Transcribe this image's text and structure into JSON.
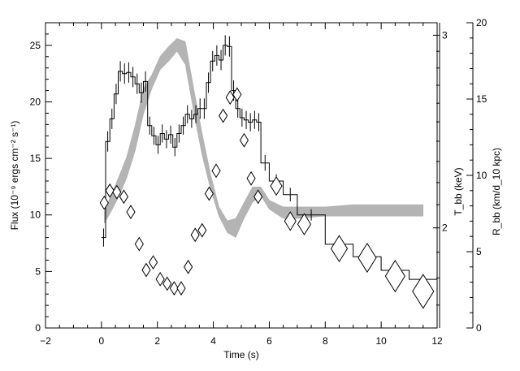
{
  "chart_data": {
    "type": "line",
    "title": "",
    "xlabel": "Time (s)",
    "ylabel_left": "Flux (10⁻⁹ ergs cm⁻² s⁻¹)",
    "ylabel_right_inner": "T_bb (keV)",
    "ylabel_right_outer": "R_bb (km/d_10 kpc)",
    "xlim": [
      -2,
      12
    ],
    "ylim": [
      0,
      27
    ],
    "x_ticks": [
      -2,
      0,
      2,
      4,
      6,
      8,
      10,
      12
    ],
    "y_ticks": [
      0,
      5,
      10,
      15,
      20,
      25
    ],
    "temperature_axis": {
      "scale": "log",
      "labeled_ticks": [
        2,
        3
      ],
      "minor_ticks": [
        1.7,
        1.8,
        1.9,
        2.1,
        2.2,
        2.3,
        2.4,
        2.5,
        2.6,
        2.7,
        2.8,
        2.9
      ],
      "range": [
        1.62,
        3.08
      ]
    },
    "radius_axis": {
      "ylim": [
        0,
        20
      ],
      "ticks": [
        0,
        5,
        10,
        15,
        20
      ]
    },
    "grid": false,
    "legend": "none",
    "series": [
      {
        "style": "histogram-with-error-bars",
        "axis": "flux",
        "edges": [
          0.0,
          0.15,
          0.3,
          0.45,
          0.6,
          0.75,
          0.9,
          1.05,
          1.2,
          1.35,
          1.5,
          1.65,
          1.8,
          1.95,
          2.1,
          2.25,
          2.4,
          2.55,
          2.7,
          2.85,
          3.0,
          3.15,
          3.3,
          3.45,
          3.6,
          3.75,
          3.9,
          4.05,
          4.2,
          4.35,
          4.5,
          4.65,
          4.8,
          4.95,
          5.1,
          5.25,
          5.4,
          5.55,
          5.7,
          6.0,
          6.5,
          7.0,
          8.0,
          9.0,
          10.0,
          11.0,
          12.0
        ],
        "values": [
          8.0,
          16.5,
          18.5,
          20.7,
          22.7,
          22.5,
          22.6,
          22.2,
          21.6,
          20.8,
          21.8,
          17.9,
          17.0,
          16.2,
          17.2,
          16.7,
          17.1,
          16.0,
          17.2,
          17.9,
          18.9,
          18.5,
          18.9,
          19.4,
          19.4,
          21.7,
          23.6,
          24.1,
          23.7,
          25.0,
          24.9,
          21.0,
          19.4,
          18.6,
          18.4,
          18.2,
          18.4,
          18.2,
          14.6,
          13.0,
          11.8,
          10.0,
          7.4,
          6.3,
          5.1,
          4.3
        ],
        "errors": [
          0.8,
          0.9,
          0.9,
          0.9,
          0.9,
          0.9,
          0.9,
          0.9,
          0.9,
          0.9,
          0.9,
          0.8,
          0.8,
          0.8,
          0.8,
          0.8,
          0.8,
          0.8,
          0.8,
          0.8,
          0.8,
          0.8,
          0.8,
          0.9,
          0.9,
          0.9,
          0.9,
          0.9,
          0.9,
          0.9,
          0.9,
          0.9,
          0.8,
          0.8,
          0.8,
          0.8,
          0.8,
          0.8,
          0.7,
          0.6,
          0.6,
          0.5,
          0.4,
          0.4,
          0.4,
          0.4
        ]
      },
      {
        "style": "shaded-band",
        "axis": "temperature",
        "x": [
          0.1,
          0.3,
          0.6,
          0.9,
          1.2,
          1.5,
          1.8,
          2.1,
          2.4,
          2.7,
          3.0,
          3.3,
          3.6,
          3.9,
          4.2,
          4.5,
          4.8,
          5.1,
          5.4,
          5.7,
          6.0,
          6.5,
          7.0,
          8.0,
          9.0,
          10.0,
          11.0,
          11.5
        ],
        "low": [
          2.02,
          2.06,
          2.13,
          2.22,
          2.35,
          2.54,
          2.68,
          2.79,
          2.84,
          2.9,
          2.82,
          2.55,
          2.33,
          2.17,
          2.05,
          1.98,
          1.96,
          2.04,
          2.11,
          2.14,
          2.08,
          2.04,
          2.04,
          2.05,
          2.05,
          2.05,
          2.05,
          2.05
        ],
        "high": [
          2.07,
          2.13,
          2.22,
          2.32,
          2.48,
          2.68,
          2.76,
          2.87,
          2.93,
          2.98,
          2.96,
          2.68,
          2.44,
          2.24,
          2.09,
          2.03,
          2.04,
          2.11,
          2.18,
          2.18,
          2.12,
          2.09,
          2.09,
          2.09,
          2.1,
          2.1,
          2.1,
          2.1
        ]
      },
      {
        "style": "diamonds",
        "axis": "radius",
        "x": [
          0.1,
          0.3,
          0.55,
          0.8,
          1.05,
          1.35,
          1.6,
          1.85,
          2.1,
          2.35,
          2.6,
          2.85,
          3.1,
          3.35,
          3.6,
          3.85,
          4.1,
          4.35,
          4.6,
          4.85,
          5.1,
          5.35,
          5.6,
          6.25,
          6.75,
          7.25,
          8.5,
          9.5,
          10.5,
          11.5
        ],
        "y": [
          8.2,
          9.0,
          8.9,
          8.6,
          7.6,
          5.5,
          3.8,
          4.3,
          3.2,
          2.9,
          2.6,
          2.6,
          4.0,
          6.1,
          6.4,
          8.8,
          10.3,
          13.9,
          15.1,
          15.3,
          12.3,
          9.8,
          8.6,
          9.3,
          7.0,
          6.8,
          5.2,
          4.6,
          3.4,
          2.4
        ],
        "sizes": [
          1,
          1,
          1,
          1,
          1,
          1,
          1,
          1,
          1,
          1,
          1,
          1,
          1,
          1,
          1,
          1,
          1,
          1,
          1,
          1,
          1,
          1,
          1,
          1.4,
          1.4,
          1.6,
          2.0,
          2.2,
          2.4,
          2.6
        ]
      }
    ]
  }
}
